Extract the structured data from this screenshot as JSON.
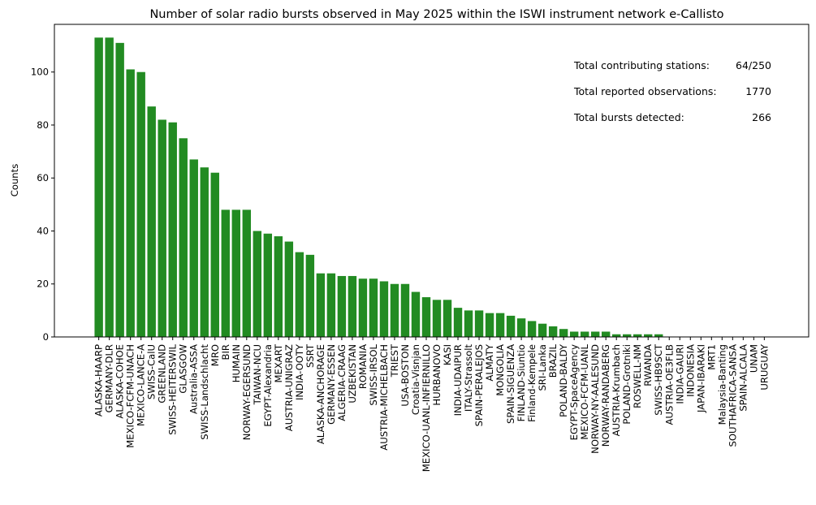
{
  "chart_data": {
    "type": "bar",
    "title": "Number of solar radio bursts observed in May 2025 within the ISWI instrument network e-Callisto",
    "xlabel": "",
    "ylabel": "Counts",
    "ylim": [
      0,
      118
    ],
    "yticks": [
      0,
      20,
      40,
      60,
      80,
      100
    ],
    "grid": false,
    "bar_color": "#228b22",
    "categories": [
      "ALASKA-HAARP",
      "GERMANY-DLR",
      "ALASKA-COHOE",
      "MEXICO-FCFM-UNACH",
      "MEXICO-LANCE-A",
      "SWISS-CalU",
      "GREENLAND",
      "SWISS-HEITERSWIL",
      "GLASGOW",
      "Australia-ASSA",
      "SWISS-Landschlacht",
      "MRO",
      "BIR",
      "HUMAIN",
      "NORWAY-EGERSUND",
      "TAIWAN-NCU",
      "EGYPT-Alexandria",
      "MEXART",
      "AUSTRIA-UNIGRAZ",
      "INDIA-OOTY",
      "SSRT",
      "ALASKA-ANCHORAGE",
      "GERMANY-ESSEN",
      "ALGERIA-CRAAG",
      "UZBEKISTAN",
      "ROMANIA",
      "SWISS-IRSOL",
      "AUSTRIA-MICHELBACH",
      "TRIEST",
      "USA-BOSTON",
      "Croatia-Visnjan",
      "MEXICO-UANL-INFIERNILLO",
      "HURBANOVO",
      "KASI",
      "INDIA-UDAIPUR",
      "ITALY-Strassolt",
      "SPAIN-PERALEJOS",
      "ALMATY",
      "MONGOLIA",
      "SPAIN-SIGUENZA",
      "FINLAND-Siuntio",
      "Finland-Kempele",
      "SRI-Lanka",
      "BRAZIL",
      "POLAND-BALDY",
      "EGYPT-SpaceAgency",
      "MEXICO-FCFM-UANL",
      "NORWAY-NY-AALESUND",
      "NORWAY-RANDABERG",
      "AUSTRIA-Krumbach",
      "POLAND-Grotniki",
      "ROSWELL-NM",
      "RWANDA",
      "SWISS-HB9SCT",
      "AUSTRIA-OE3FLB",
      "INDIA-GAURI",
      "INDONESIA",
      "JAPAN-IBARAKI",
      "MRT1",
      "Malaysia-Banting",
      "SOUTHAFRICA-SANSA",
      "SPAIN-ALCALA",
      "UNAM",
      "URUGUAY"
    ],
    "values": [
      113,
      113,
      111,
      101,
      100,
      87,
      82,
      81,
      75,
      67,
      64,
      62,
      48,
      48,
      48,
      40,
      39,
      38,
      36,
      32,
      31,
      24,
      24,
      23,
      23,
      22,
      22,
      21,
      20,
      20,
      17,
      15,
      14,
      14,
      11,
      10,
      10,
      9,
      9,
      8,
      7,
      6,
      5,
      4,
      3,
      2,
      2,
      2,
      2,
      1,
      1,
      1,
      1,
      1,
      0,
      0,
      0,
      0,
      0,
      0,
      0,
      0,
      0,
      0
    ],
    "annotations": [
      {
        "label": "Total contributing stations:",
        "value": "64/250"
      },
      {
        "label": "Total reported observations:",
        "value": "1770"
      },
      {
        "label": "Total bursts detected:",
        "value": "266"
      }
    ]
  }
}
